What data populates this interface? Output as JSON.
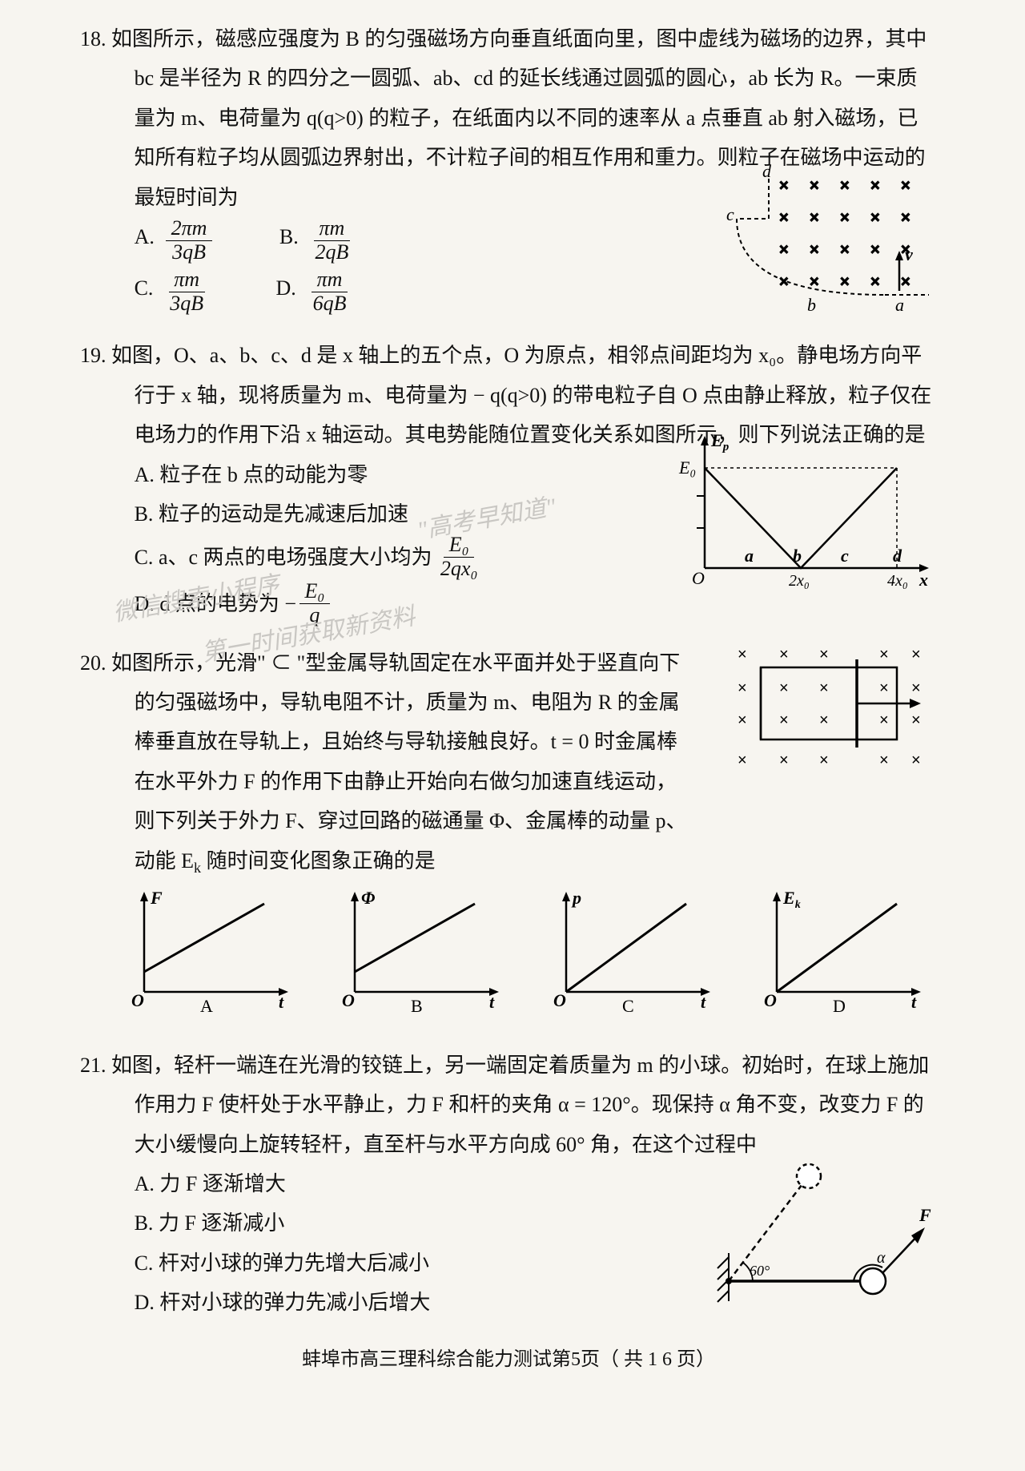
{
  "q18": {
    "num": "18.",
    "stem": "如图所示，磁感应强度为 B 的匀强磁场方向垂直纸面向里，图中虚线为磁场的边界，其中 bc 是半径为 R 的四分之一圆弧、ab、cd 的延长线通过圆弧的圆心，ab 长为 R。一束质量为 m、电荷量为 q(q>0) 的粒子，在纸面内以不同的速率从 a 点垂直 ab 射入磁场，已知所有粒子均从圆弧边界射出，不计粒子间的相互作用和重力。则粒子在磁场中运动的最短时间为",
    "choices": {
      "A": {
        "num": "2πm",
        "den": "3qB"
      },
      "B": {
        "num": "πm",
        "den": "2qB"
      },
      "C": {
        "num": "πm",
        "den": "3qB"
      },
      "D": {
        "num": "πm",
        "den": "6qB"
      }
    },
    "fig": {
      "labels": {
        "a": "a",
        "b": "b",
        "c": "c",
        "d": "d",
        "v": "v"
      }
    }
  },
  "q19": {
    "num": "19.",
    "stem": "如图，O、a、b、c、d 是 x 轴上的五个点，O 为原点，相邻点间距均为 x₀。静电场方向平行于 x 轴，现将质量为 m、电荷量为 − q(q>0) 的带电粒子自 O 点由静止释放，粒子仅在电场力的作用下沿 x 轴运动。其电势能随位置变化关系如图所示，则下列说法正确的是",
    "A": "粒子在 b 点的动能为零",
    "B": "粒子的运动是先减速后加速",
    "C_before": "a、c 两点的电场强度大小均为",
    "C_frac": {
      "num": "E₀",
      "den": "2qx₀"
    },
    "D_before": "d 点的电势为 −",
    "D_frac": {
      "num": "E₀",
      "den": "q"
    },
    "fig": {
      "ylabel": "E",
      "ysub": "p",
      "y0": "E₀",
      "xtick1": "2x₀",
      "xtick2": "4x₀",
      "x": "x",
      "O": "O",
      "pts": [
        "a",
        "b",
        "c",
        "d"
      ]
    }
  },
  "q20": {
    "num": "20.",
    "stem_a": "如图所示，光滑\" ⊂ \"型金属导轨固定在水平面并处于竖直向下的匀强磁场中，导轨电阻不计，质量为 m、电阻为 R 的金属棒垂直放在导轨上，且始终与导轨接触良好。t = 0 时金属棒在水平外力 F 的作用下由静止开始向右做匀加速直线运动，则下列关于外力 F、穿过回路的磁通量 Φ、金属棒的动量 p、动能 E",
    "stem_k_sub": "k",
    "stem_b": " 随时间变化图象正确的是",
    "panel_labels": {
      "A": "A",
      "B": "B",
      "C": "C",
      "D": "D"
    },
    "axes": {
      "F": "F",
      "Phi": "Φ",
      "p": "p",
      "Ek": "E",
      "Ek_sub": "k",
      "O": "O",
      "t": "t"
    }
  },
  "q21": {
    "num": "21.",
    "stem": "如图，轻杆一端连在光滑的铰链上，另一端固定着质量为 m 的小球。初始时，在球上施加作用力 F 使杆处于水平静止，力 F 和杆的夹角 α = 120°。现保持 α 角不变，改变力 F 的大小缓慢向上旋转轻杆，直至杆与水平方向成 60° 角，在这个过程中",
    "A": "力 F 逐渐增大",
    "B": "力 F 逐渐减小",
    "C": "杆对小球的弹力先增大后减小",
    "D": "杆对小球的弹力先减小后增大",
    "fig": {
      "F": "F",
      "alpha": "α",
      "ang": "60°"
    }
  },
  "footer": "蚌埠市高三理科综合能力测试第5页（ 共 1 6 页）",
  "watermark1": "\"高考早知道\"",
  "watermark2": "微信搜索小程序",
  "watermark3": "第一时间获取新资料",
  "colors": {
    "bg": "#f7f5f0",
    "ink": "#111",
    "wm": "#c9c7c3"
  }
}
